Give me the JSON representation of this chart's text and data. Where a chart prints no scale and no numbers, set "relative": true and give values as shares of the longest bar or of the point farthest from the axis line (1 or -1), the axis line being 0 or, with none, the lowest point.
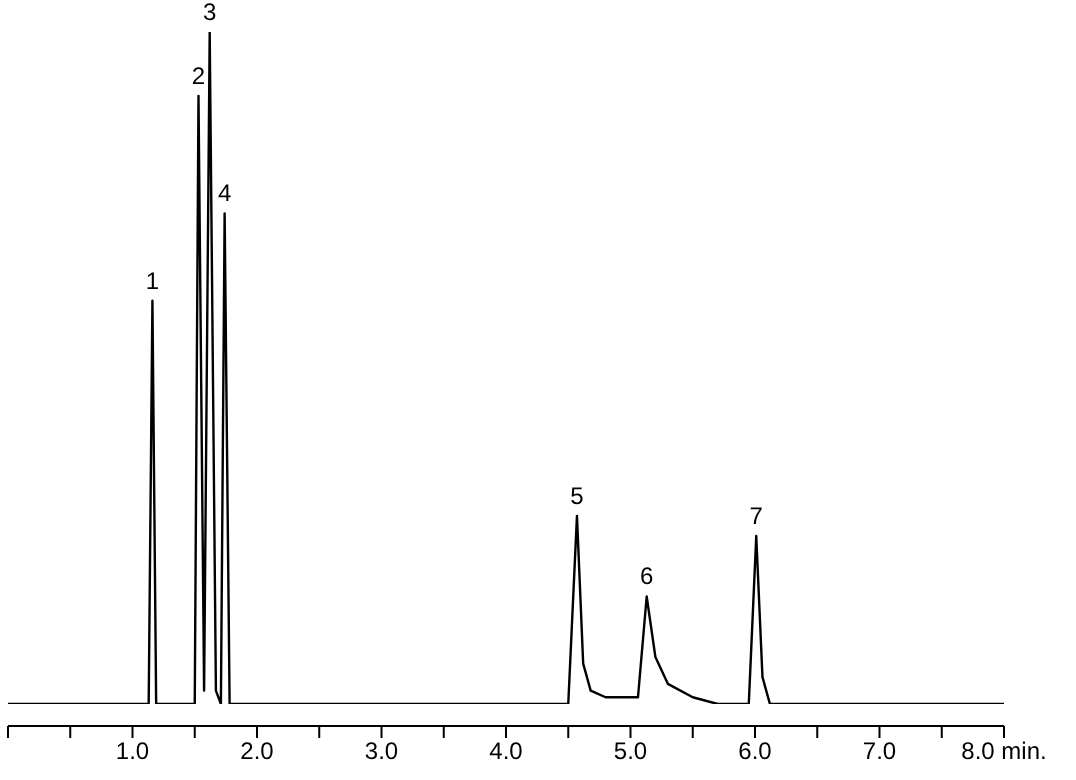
{
  "chart_data": {
    "type": "line",
    "relative": true,
    "xlim": [
      0,
      8
    ],
    "xticks": [
      {
        "value": 0,
        "label": null
      },
      {
        "value": 0.5,
        "label": null
      },
      {
        "value": 1,
        "label": "1.0"
      },
      {
        "value": 1.5,
        "label": null
      },
      {
        "value": 2,
        "label": "2.0"
      },
      {
        "value": 2.5,
        "label": null
      },
      {
        "value": 3,
        "label": "3.0"
      },
      {
        "value": 3.5,
        "label": null
      },
      {
        "value": 4,
        "label": "4.0"
      },
      {
        "value": 4.5,
        "label": null
      },
      {
        "value": 5,
        "label": "5.0"
      },
      {
        "value": 5.5,
        "label": null
      },
      {
        "value": 6,
        "label": "6.0"
      },
      {
        "value": 6.5,
        "label": null
      },
      {
        "value": 7,
        "label": "7.0"
      },
      {
        "value": 7.5,
        "label": null
      },
      {
        "value": 8,
        "label": "8.0 min."
      }
    ],
    "series": [
      {
        "color": "#000000",
        "x": [
          0,
          1.13,
          1.16,
          1.19,
          1.5,
          1.53,
          1.575,
          1.62,
          1.67,
          1.71,
          1.74,
          1.78,
          4.5,
          4.57,
          4.62,
          4.68,
          4.8,
          5.06,
          5.13,
          5.2,
          5.3,
          5.5,
          5.7,
          5.95,
          6.01,
          6.06,
          6.12,
          8
        ],
        "values": [
          0,
          0,
          0.6,
          0,
          0,
          0.905,
          0.02,
          1,
          0.02,
          0,
          0.73,
          0,
          0,
          0.28,
          0.06,
          0.02,
          0.01,
          0.01,
          0.16,
          0.07,
          0.03,
          0.01,
          0,
          0,
          0.25,
          0.04,
          0,
          0
        ]
      }
    ],
    "marker": "none",
    "line_style": "solid",
    "grid": false,
    "legend": false,
    "tick_labels": "x",
    "annotations": [
      {
        "text": "1",
        "x": 1.16,
        "y": 0.6
      },
      {
        "text": "2",
        "x": 1.53,
        "y": 0.905
      },
      {
        "text": "3",
        "x": 1.62,
        "y": 1
      },
      {
        "text": "4",
        "x": 1.74,
        "y": 0.73
      },
      {
        "text": "5",
        "x": 4.57,
        "y": 0.28
      },
      {
        "text": "6",
        "x": 5.13,
        "y": 0.16
      },
      {
        "text": "7",
        "x": 6.01,
        "y": 0.25
      }
    ]
  }
}
